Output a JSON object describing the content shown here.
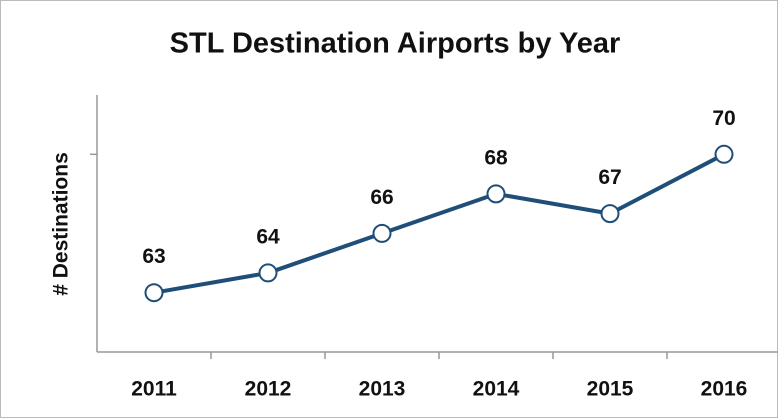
{
  "chart_data": {
    "type": "line",
    "title": "STL Destination Airports by Year",
    "y_label": "# Destinations",
    "categories": [
      "2011",
      "2012",
      "2013",
      "2014",
      "2015",
      "2016"
    ],
    "series": [
      {
        "name": "Destinations",
        "color": "#1f4e79",
        "values": [
          63,
          64,
          66,
          68,
          67,
          70
        ]
      }
    ],
    "ylim": [
      60,
      73
    ],
    "yticks": [
      70
    ],
    "grid": false,
    "legend": false
  }
}
